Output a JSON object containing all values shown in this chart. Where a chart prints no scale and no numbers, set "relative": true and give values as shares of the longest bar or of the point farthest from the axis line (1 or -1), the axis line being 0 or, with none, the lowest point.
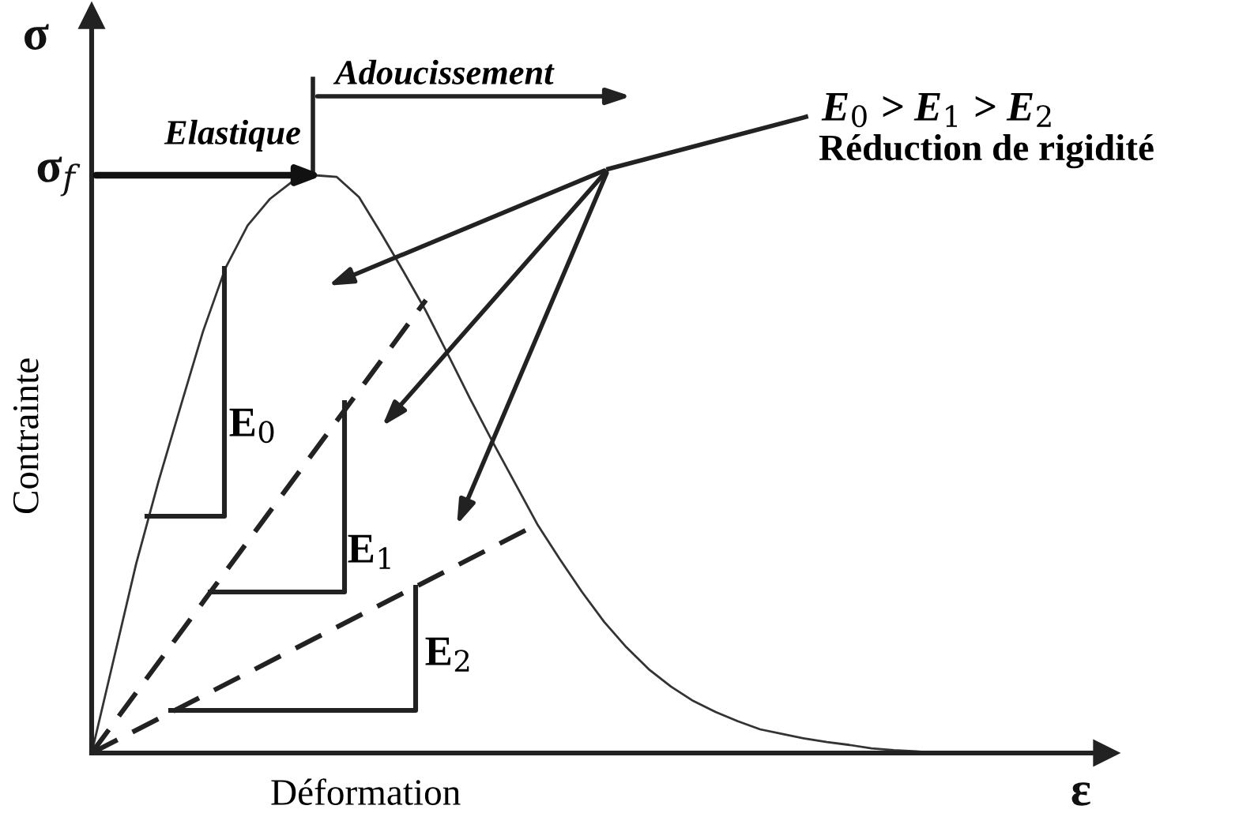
{
  "chart_data": {
    "type": "line",
    "relative": true,
    "xlabel": "Déformation",
    "ylabel": "Contrainte",
    "categories": [
      null,
      null,
      null,
      null,
      null,
      null,
      null,
      null,
      null,
      null,
      null,
      null,
      null,
      null,
      null,
      null,
      null,
      null,
      null,
      null,
      null,
      null,
      null,
      null,
      null,
      null,
      null,
      null,
      null,
      null,
      null,
      null,
      null,
      null,
      null,
      null,
      null,
      null,
      null,
      null,
      null,
      null,
      null,
      null,
      null,
      null
    ],
    "series": [
      {
        "color": "#333333",
        "line_style": "solid",
        "values": [
          0,
          0.164,
          0.328,
          0.47,
          0.601,
          0.73,
          0.839,
          0.913,
          0.959,
          0.989,
          1,
          0.997,
          0.962,
          0.899,
          0.833,
          0.765,
          0.689,
          0.612,
          0.538,
          0.467,
          0.396,
          0.336,
          0.279,
          0.227,
          0.183,
          0.145,
          0.115,
          0.09,
          0.071,
          0.055,
          0.041,
          0.033,
          0.025,
          0.019,
          0.014,
          0.008,
          0.005,
          0.003,
          0,
          null,
          null,
          null,
          null,
          null,
          null,
          null
        ]
      },
      {
        "color": "#222222",
        "line_style": "dashed",
        "values": [
          0,
          null,
          null,
          null,
          null,
          null,
          null,
          null,
          null,
          null,
          null,
          null,
          null,
          null,
          null,
          0.784,
          null,
          null,
          null,
          null,
          null,
          null,
          null,
          null,
          null,
          null,
          null,
          null,
          null,
          null,
          null,
          null,
          null,
          null,
          null,
          null,
          null,
          null,
          null,
          null,
          null,
          null,
          null,
          null,
          null,
          null
        ]
      },
      {
        "color": "#222222",
        "line_style": "dashed",
        "values": [
          0,
          null,
          null,
          null,
          null,
          null,
          null,
          null,
          null,
          null,
          null,
          null,
          null,
          null,
          null,
          null,
          null,
          null,
          null,
          null,
          0.396,
          null,
          null,
          null,
          null,
          null,
          null,
          null,
          null,
          null,
          null,
          null,
          null,
          null,
          null,
          null,
          null,
          null,
          null,
          null,
          null,
          null,
          null,
          null,
          null,
          null
        ]
      }
    ],
    "annotations": [
      "σ",
      "σ$_{f}$",
      "ε",
      "Elastique",
      "Adoucissement",
      "E$_{0}$ > E$_{1}$ > E$_{2}$",
      "Réduction de rigidité",
      "E$_{0}$",
      "E$_{1}$",
      "E$_{2}$"
    ]
  }
}
